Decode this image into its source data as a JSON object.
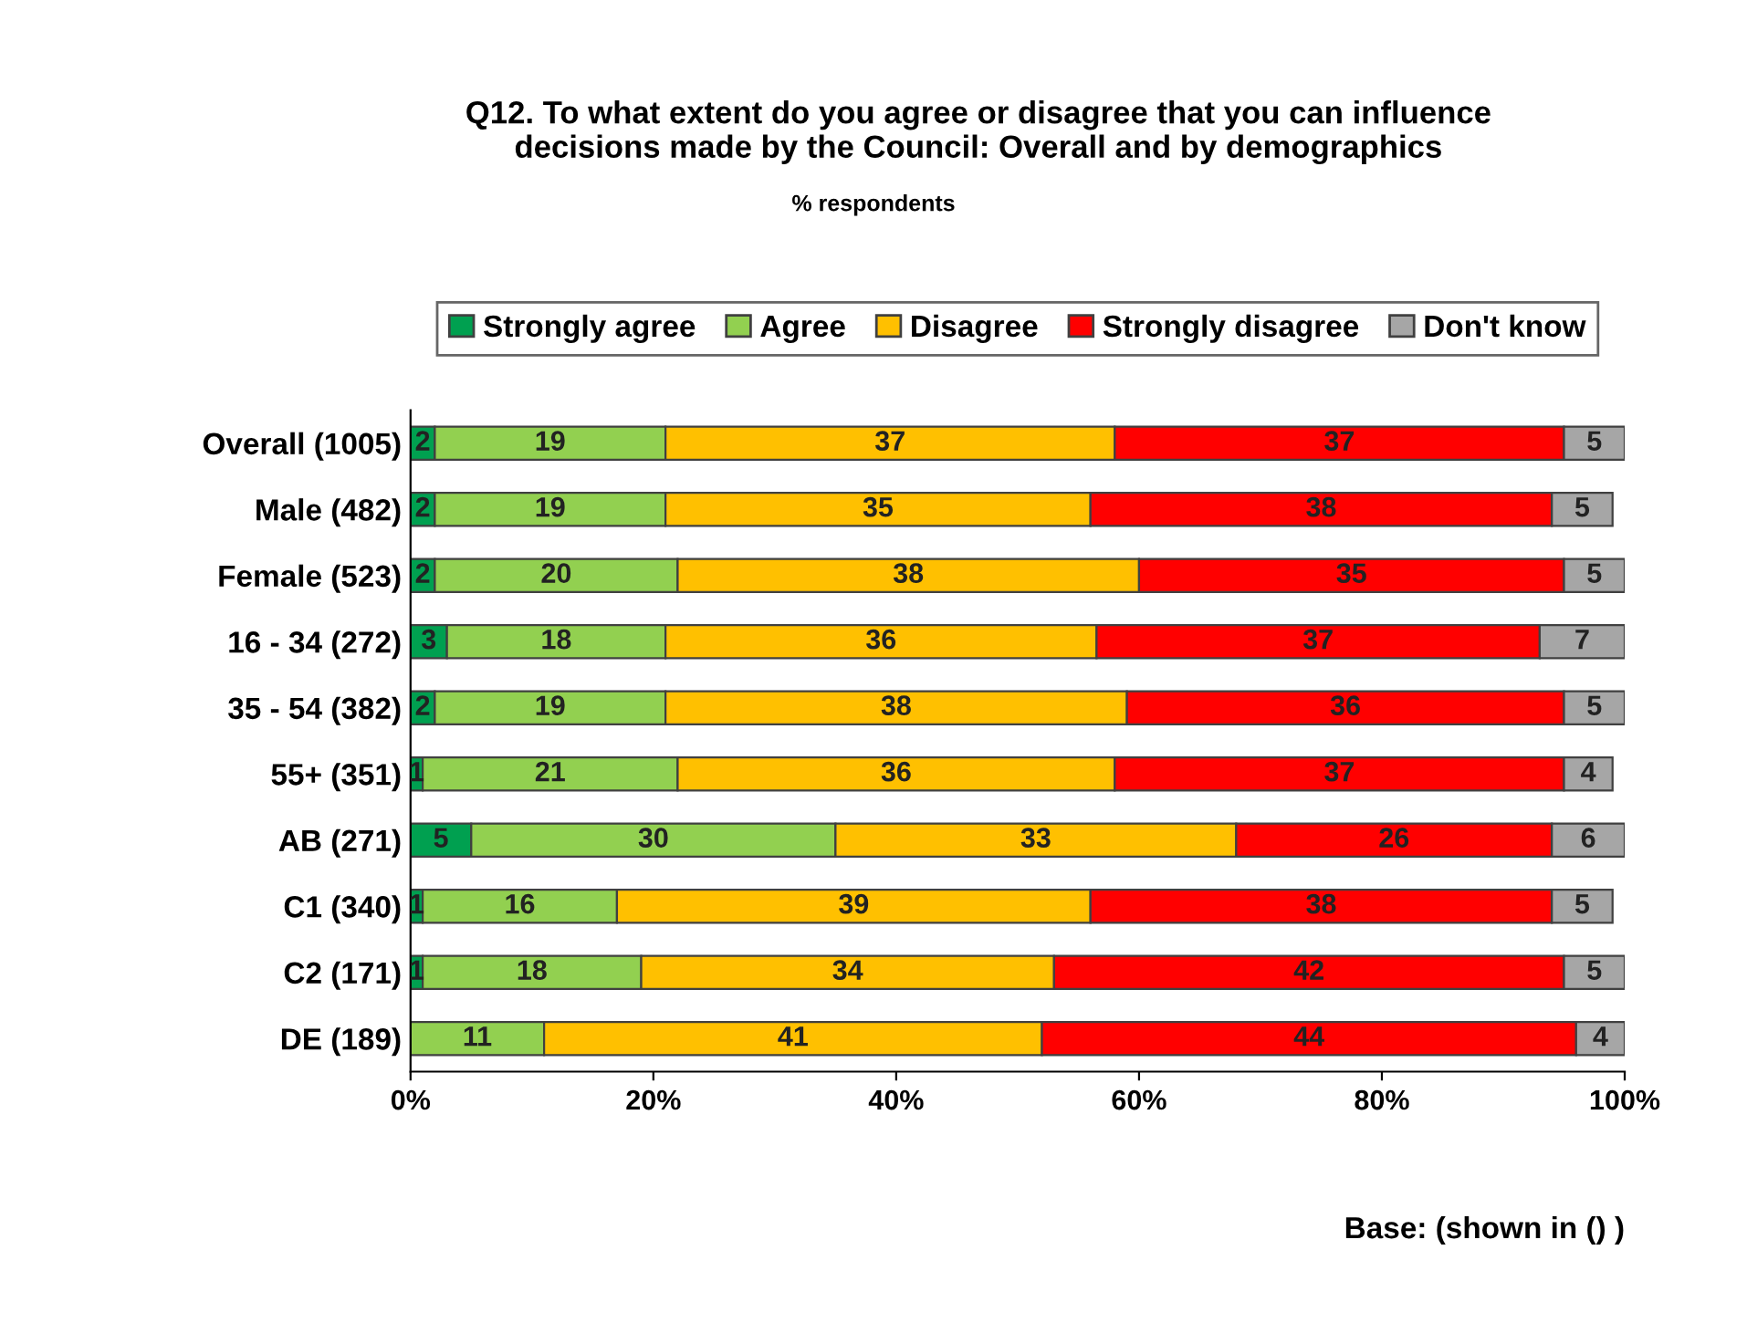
{
  "chart_data": {
    "type": "bar",
    "orientation": "horizontal",
    "stacked": true,
    "title": "Q12. To what extent do you agree or disagree that you can influence\ndecisions made by the Council: Overall and by demographics",
    "subtitle": "% respondents",
    "categories": [
      "Overall (1005)",
      "Male (482)",
      "Female (523)",
      "16 - 34 (272)",
      "35 - 54 (382)",
      "55+ (351)",
      "AB (271)",
      "C1 (340)",
      "C2 (171)",
      "DE (189)"
    ],
    "series": [
      {
        "name": "Strongly agree",
        "color": "#00a050",
        "values": [
          2,
          2,
          2,
          3,
          2,
          1,
          5,
          1,
          1,
          0
        ],
        "value_labels": [
          "2",
          "2",
          "2",
          "3",
          "2",
          "1",
          "5",
          "1",
          "1",
          null
        ]
      },
      {
        "name": "Agree",
        "color": "#92d050",
        "values": [
          19,
          19,
          20,
          18,
          19,
          21,
          30,
          16,
          18,
          11
        ],
        "value_labels": [
          "19",
          "19",
          "20",
          "18",
          "19",
          "21",
          "30",
          "16",
          "18",
          "11"
        ]
      },
      {
        "name": "Disagree",
        "color": "#ffc000",
        "values": [
          37,
          35,
          38,
          35.5,
          38,
          36,
          33,
          39,
          34,
          41
        ],
        "value_labels": [
          "37",
          "35",
          "38",
          "36",
          "38",
          "36",
          "33",
          "39",
          "34",
          "41"
        ]
      },
      {
        "name": "Strongly disagree",
        "color": "#ff0000",
        "values": [
          37,
          38,
          35,
          36.5,
          36,
          37,
          26,
          38,
          42,
          44
        ],
        "value_labels": [
          "37",
          "38",
          "35",
          "37",
          "36",
          "37",
          "26",
          "38",
          "42",
          "44"
        ]
      },
      {
        "name": "Don't know",
        "color": "#a6a6a6",
        "values": [
          5,
          5,
          5,
          7,
          5,
          4,
          6,
          5,
          5,
          4
        ],
        "value_labels": [
          "5",
          "5",
          "5",
          "7",
          "5",
          "4",
          "6",
          "5",
          "5",
          "4"
        ]
      }
    ],
    "xlim": [
      0,
      100
    ],
    "xticks": [
      {
        "value": 0,
        "label": "0%"
      },
      {
        "value": 20,
        "label": "20%"
      },
      {
        "value": 40,
        "label": "40%"
      },
      {
        "value": 60,
        "label": "60%"
      },
      {
        "value": 80,
        "label": "80%"
      },
      {
        "value": 100,
        "label": "100%"
      }
    ],
    "legend": "top",
    "annotations": [
      "Base: (shown in () )"
    ]
  }
}
